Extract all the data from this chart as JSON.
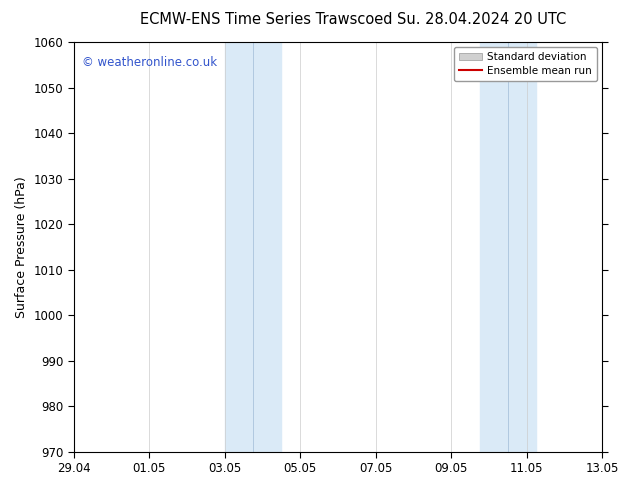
{
  "title_left": "ECMW-ENS Time Series Trawscoed",
  "title_right": "Su. 28.04.2024 20 UTC",
  "ylabel": "Surface Pressure (hPa)",
  "ylim": [
    970,
    1060
  ],
  "yticks": [
    970,
    980,
    990,
    1000,
    1010,
    1020,
    1030,
    1040,
    1050,
    1060
  ],
  "xtick_labels": [
    "29.04",
    "01.05",
    "03.05",
    "05.05",
    "07.05",
    "09.05",
    "11.05",
    "13.05"
  ],
  "xtick_positions": [
    0,
    2,
    4,
    6,
    8,
    10,
    12,
    14
  ],
  "shaded_bands": [
    {
      "xstart": 4.0,
      "xend": 4.75,
      "color": "#daeaf7"
    },
    {
      "xstart": 4.75,
      "xend": 5.5,
      "color": "#daeaf7"
    },
    {
      "xstart": 10.75,
      "xend": 11.5,
      "color": "#daeaf7"
    },
    {
      "xstart": 11.5,
      "xend": 12.25,
      "color": "#daeaf7"
    }
  ],
  "band_dividers": [
    4.75,
    11.5
  ],
  "watermark": "© weatheronline.co.uk",
  "watermark_color": "#3355cc",
  "legend_std_color": "#d0d0d0",
  "legend_mean_color": "#cc0000",
  "background_color": "#ffffff",
  "plot_bg_color": "#ffffff",
  "title_fontsize": 10.5,
  "axis_label_fontsize": 9,
  "tick_fontsize": 8.5
}
